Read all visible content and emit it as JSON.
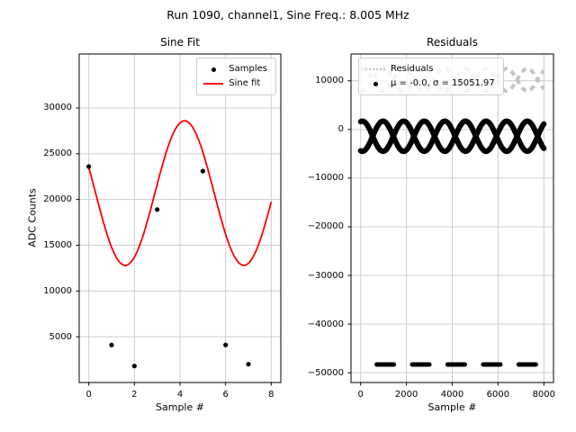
{
  "figure": {
    "title": "Run 1090, channel1, Sine Freq.: 8.005 MHz",
    "background": "#ffffff"
  },
  "chart_data": [
    {
      "type": "scatter",
      "title": "Sine Fit",
      "xlabel": "Sample #",
      "ylabel": "ADC Counts",
      "xlim": [
        -0.42,
        8.42
      ],
      "ylim": [
        0,
        35900
      ],
      "xticks": [
        0,
        2,
        4,
        6,
        8
      ],
      "yticks": [
        5000,
        10000,
        15000,
        20000,
        25000,
        30000
      ],
      "grid": true,
      "legend": [
        "Samples",
        "Sine fit"
      ],
      "legend_position": "upper right",
      "samples": {
        "color": "#000000",
        "x": [
          0,
          1,
          2,
          3,
          5,
          6,
          7
        ],
        "y": [
          23600,
          4100,
          1800,
          18900,
          23100,
          4100,
          2000
        ]
      },
      "sine_fit": {
        "color": "#ff0000",
        "offset": 20700,
        "amplitude": 7900,
        "period": 5.2,
        "min_at": 1.6,
        "x_range": [
          0,
          8
        ]
      }
    },
    {
      "type": "scatter",
      "title": "Residuals",
      "xlabel": "Sample #",
      "ylabel": "",
      "xlim": [
        -420,
        8420
      ],
      "ylim": [
        -52000,
        15500
      ],
      "xticks": [
        0,
        2000,
        4000,
        6000,
        8000
      ],
      "yticks": [
        -50000,
        -40000,
        -30000,
        -20000,
        -10000,
        0,
        10000
      ],
      "grid": true,
      "legend": [
        "Residuals",
        "μ = -0.0, σ = 15051.97"
      ],
      "legend_position": "upper left",
      "stats": {
        "mu": -0.0,
        "sigma": 15051.97
      },
      "bands": [
        {
          "name": "residuals-upper-band",
          "color": "#c3c3c3",
          "style": "dashed",
          "stroke": 4,
          "center": 10200,
          "amplitude": 2300,
          "period": 1800,
          "phases": [
            1.3,
            4.4416
          ],
          "x_range": [
            0,
            8000
          ]
        },
        {
          "name": "residuals-main-band",
          "color": "#000000",
          "style": "solid",
          "stroke": 6,
          "center": -1400,
          "amplitude": 3100,
          "period": 1800,
          "phases": [
            1.3,
            4.4416
          ],
          "x_range": [
            0,
            8000
          ]
        }
      ],
      "low_dashes": {
        "color": "#000000",
        "y": -48300,
        "segments": [
          [
            700,
            1450
          ],
          [
            2250,
            3000
          ],
          [
            3800,
            4550
          ],
          [
            5350,
            6100
          ],
          [
            6900,
            7650
          ]
        ]
      }
    }
  ]
}
